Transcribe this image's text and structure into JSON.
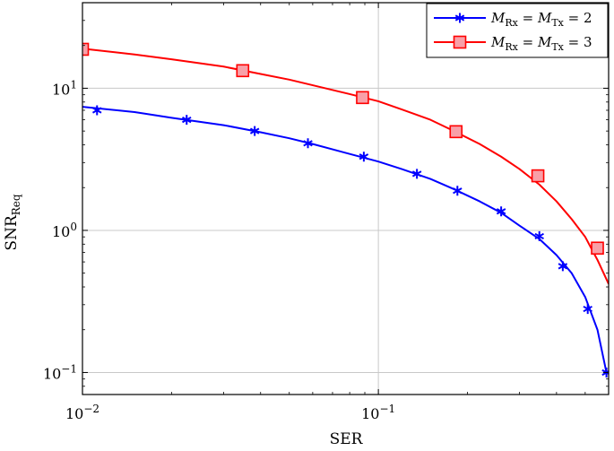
{
  "chart_data": {
    "type": "line",
    "title": "",
    "xlabel": "SER",
    "ylabel": "SNR",
    "ylabel_sub": "Req",
    "xscale": "log",
    "yscale": "log",
    "xlim": [
      0.01,
      0.6
    ],
    "ylim": [
      0.07,
      40
    ],
    "grid": "major",
    "x_ticks": [
      {
        "value": 0.01,
        "base": "10",
        "exp": "−2"
      },
      {
        "value": 0.1,
        "base": "10",
        "exp": "−1"
      }
    ],
    "y_ticks": [
      {
        "value": 0.1,
        "base": "10",
        "exp": "−1"
      },
      {
        "value": 1,
        "base": "10",
        "exp": "0"
      },
      {
        "value": 10,
        "base": "10",
        "exp": "1"
      }
    ],
    "legend": {
      "position": "top-right"
    },
    "series": [
      {
        "name": "M_Rx = M_Tx = 2",
        "label_parts": [
          "M",
          "Rx",
          " = ",
          "M",
          "Tx",
          " = 2"
        ],
        "color": "#0000ff",
        "marker": "star",
        "curve": [
          [
            0.01,
            7.4
          ],
          [
            0.015,
            6.8
          ],
          [
            0.02,
            6.2
          ],
          [
            0.03,
            5.5
          ],
          [
            0.04,
            4.9
          ],
          [
            0.05,
            4.45
          ],
          [
            0.06,
            4.05
          ],
          [
            0.08,
            3.45
          ],
          [
            0.1,
            3.05
          ],
          [
            0.12,
            2.7
          ],
          [
            0.15,
            2.3
          ],
          [
            0.18,
            1.95
          ],
          [
            0.22,
            1.6
          ],
          [
            0.26,
            1.33
          ],
          [
            0.3,
            1.08
          ],
          [
            0.35,
            0.87
          ],
          [
            0.4,
            0.67
          ],
          [
            0.45,
            0.5
          ],
          [
            0.5,
            0.34
          ],
          [
            0.55,
            0.2
          ],
          [
            0.59,
            0.1
          ]
        ],
        "points": [
          [
            0.0112,
            7.0
          ],
          [
            0.0225,
            6.0
          ],
          [
            0.0382,
            5.0
          ],
          [
            0.0578,
            4.1
          ],
          [
            0.0893,
            3.3
          ],
          [
            0.135,
            2.5
          ],
          [
            0.185,
            1.9
          ],
          [
            0.26,
            1.36
          ],
          [
            0.35,
            0.91
          ],
          [
            0.42,
            0.56
          ],
          [
            0.51,
            0.28
          ],
          [
            0.59,
            0.1
          ]
        ]
      },
      {
        "name": "M_Rx = M_Tx = 3",
        "label_parts": [
          "M",
          "Rx",
          " = ",
          "M",
          "Tx",
          " = 3"
        ],
        "color": "#ff0000",
        "marker": "square",
        "marker_fill": "#f8a0a8",
        "curve": [
          [
            0.01,
            19
          ],
          [
            0.015,
            17.3
          ],
          [
            0.02,
            16
          ],
          [
            0.03,
            14.2
          ],
          [
            0.04,
            12.6
          ],
          [
            0.05,
            11.5
          ],
          [
            0.06,
            10.5
          ],
          [
            0.08,
            9.1
          ],
          [
            0.1,
            8.1
          ],
          [
            0.12,
            7.1
          ],
          [
            0.15,
            6.0
          ],
          [
            0.18,
            5.0
          ],
          [
            0.22,
            4.05
          ],
          [
            0.26,
            3.3
          ],
          [
            0.3,
            2.7
          ],
          [
            0.35,
            2.1
          ],
          [
            0.4,
            1.6
          ],
          [
            0.45,
            1.2
          ],
          [
            0.5,
            0.9
          ],
          [
            0.55,
            0.62
          ],
          [
            0.6,
            0.42
          ]
        ],
        "points": [
          [
            0.01,
            18.8
          ],
          [
            0.0348,
            13.3
          ],
          [
            0.0884,
            8.6
          ],
          [
            0.183,
            4.95
          ],
          [
            0.346,
            2.42
          ],
          [
            0.55,
            0.75
          ]
        ]
      }
    ]
  }
}
